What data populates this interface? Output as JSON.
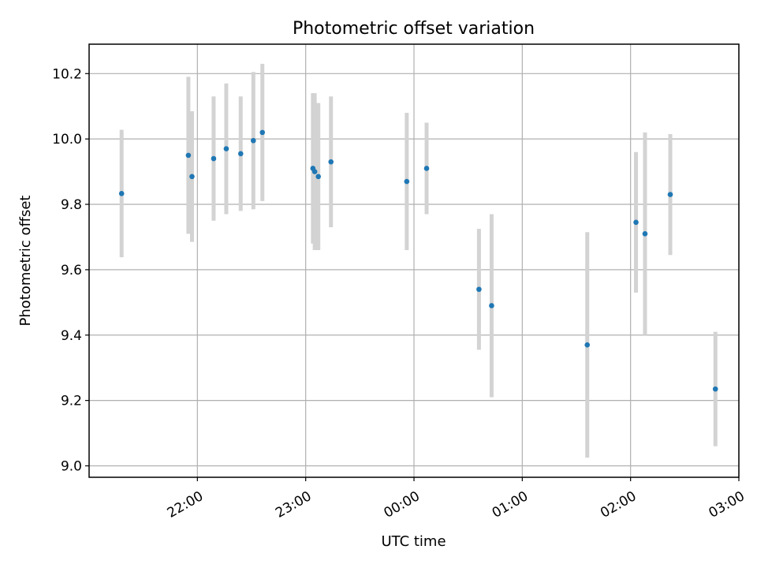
{
  "chart_data": {
    "type": "scatter",
    "title": "Photometric offset variation",
    "xlabel": "UTC time",
    "ylabel": "Photometric offset",
    "x_ticks": [
      "22:00",
      "23:00",
      "00:00",
      "01:00",
      "02:00",
      "03:00"
    ],
    "y_ticks": [
      "9.0",
      "9.2",
      "9.4",
      "9.6",
      "9.8",
      "10.0",
      "10.2"
    ],
    "x_start_time": "21:02",
    "xlim_minutes": [
      -2,
      358
    ],
    "ylim": [
      8.965,
      10.29
    ],
    "grid": true,
    "colors": {
      "marker": "#1f77b4",
      "errorbar": "#d3d3d3",
      "grid": "#b0b0b0"
    },
    "x_time": [
      "21:18",
      "21:55",
      "21:57",
      "22:09",
      "22:16",
      "22:24",
      "22:31",
      "22:36",
      "23:04",
      "23:05",
      "23:07",
      "23:14",
      "23:56",
      "00:07",
      "00:36",
      "00:43",
      "01:36",
      "02:03",
      "02:08",
      "02:22",
      "02:47"
    ],
    "y": [
      9.833,
      9.95,
      9.885,
      9.94,
      9.97,
      9.955,
      9.995,
      10.02,
      9.91,
      9.9,
      9.885,
      9.93,
      9.87,
      9.91,
      9.54,
      9.49,
      9.37,
      9.745,
      9.71,
      9.83,
      9.235
    ],
    "yerr": [
      0.195,
      0.24,
      0.2,
      0.19,
      0.2,
      0.175,
      0.21,
      0.21,
      0.23,
      0.24,
      0.225,
      0.2,
      0.21,
      0.14,
      0.185,
      0.28,
      0.345,
      0.215,
      0.31,
      0.185,
      0.175
    ]
  }
}
